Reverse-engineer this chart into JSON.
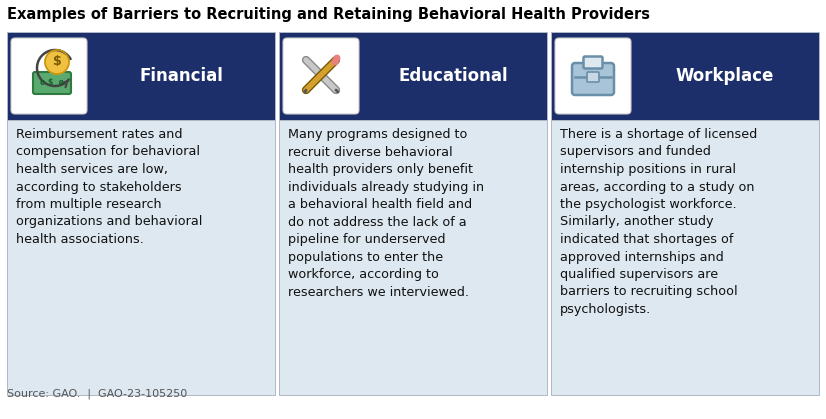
{
  "title": "Examples of Barriers to Recruiting and Retaining Behavioral Health Providers",
  "title_fontsize": 10.5,
  "title_color": "#000000",
  "header_bg_color": "#1c2f6b",
  "header_text_color": "#ffffff",
  "body_bg_color": "#dde8f0",
  "border_color": "#b0b8c8",
  "source_text": "Source: GAO.  |  GAO-23-105250",
  "columns": [
    {
      "header": "Financial",
      "body": "Reimbursement rates and\ncompensation for behavioral\nhealth services are low,\naccording to stakeholders\nfrom multiple research\norganizations and behavioral\nhealth associations.",
      "icon": "financial"
    },
    {
      "header": "Educational",
      "body": "Many programs designed to\nrecruit diverse behavioral\nhealth providers only benefit\nindividuals already studying in\na behavioral health field and\ndo not address the lack of a\npipeline for underserved\npopulations to enter the\nworkforce, according to\nresearchers we interviewed.",
      "icon": "educational"
    },
    {
      "header": "Workplace",
      "body": "There is a shortage of licensed\nsupervisors and funded\ninternship positions in rural\nareas, according to a study on\nthe psychologist workforce.\nSimilarly, another study\nindicated that shortages of\napproved internships and\nqualified supervisors are\nbarriers to recruiting school\npsychologists.",
      "icon": "workplace"
    }
  ],
  "header_fontsize": 12,
  "body_fontsize": 9.2,
  "source_fontsize": 8.0,
  "fig_width": 8.26,
  "fig_height": 4.19,
  "icon_box_color": "#ffffff",
  "icon_box_border": "#cccccc"
}
